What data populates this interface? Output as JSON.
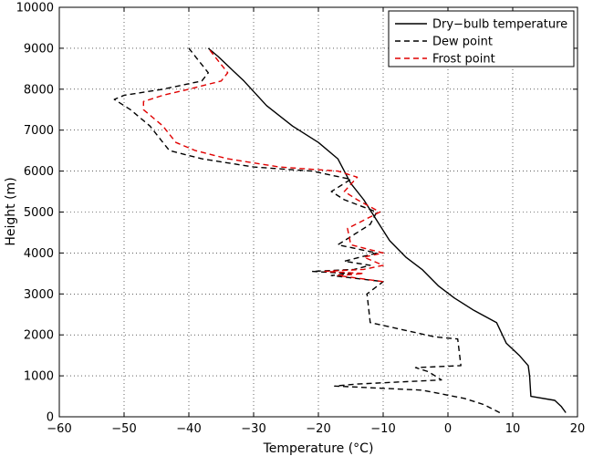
{
  "chart_data": {
    "type": "line",
    "title": "",
    "xlabel": "Temperature (°C)",
    "ylabel": "Height (m)",
    "xlim": [
      -60,
      20
    ],
    "ylim": [
      0,
      10000
    ],
    "xticks": [
      -60,
      -50,
      -40,
      -30,
      -20,
      -10,
      0,
      10,
      20
    ],
    "yticks": [
      0,
      1000,
      2000,
      3000,
      4000,
      5000,
      6000,
      7000,
      8000,
      9000,
      10000
    ],
    "grid": true,
    "legend_position": "top-right",
    "series": [
      {
        "name": "Dry−bulb temperature",
        "color": "#000000",
        "dash": "solid",
        "points": [
          [
            18.2,
            100
          ],
          [
            17.5,
            250
          ],
          [
            16.5,
            400
          ],
          [
            12.8,
            500
          ],
          [
            12.6,
            1000
          ],
          [
            12.4,
            1250
          ],
          [
            11.0,
            1500
          ],
          [
            9.0,
            1800
          ],
          [
            7.5,
            2300
          ],
          [
            4.0,
            2600
          ],
          [
            1.0,
            2900
          ],
          [
            -1.5,
            3200
          ],
          [
            -4.0,
            3600
          ],
          [
            -6.5,
            3900
          ],
          [
            -9.0,
            4300
          ],
          [
            -11.0,
            4800
          ],
          [
            -13.0,
            5300
          ],
          [
            -15.0,
            5700
          ],
          [
            -17.0,
            6300
          ],
          [
            -20.0,
            6700
          ],
          [
            -24.0,
            7100
          ],
          [
            -28.0,
            7600
          ],
          [
            -31.5,
            8200
          ],
          [
            -33.5,
            8500
          ],
          [
            -35.5,
            8800
          ],
          [
            -37.0,
            9000
          ]
        ]
      },
      {
        "name": "Dew point",
        "color": "#000000",
        "dash": "dashed",
        "points": [
          [
            8.0,
            100
          ],
          [
            5.5,
            300
          ],
          [
            2.5,
            450
          ],
          [
            -4.0,
            650
          ],
          [
            -17.5,
            750
          ],
          [
            -14.0,
            800
          ],
          [
            -1.0,
            900
          ],
          [
            -3.0,
            1100
          ],
          [
            -5.0,
            1200
          ],
          [
            2.0,
            1250
          ],
          [
            1.5,
            1900
          ],
          [
            -2.0,
            1950
          ],
          [
            -12.0,
            2300
          ],
          [
            -12.5,
            3000
          ],
          [
            -10.0,
            3300
          ],
          [
            -18.0,
            3450
          ],
          [
            -15.0,
            3500
          ],
          [
            -21.0,
            3550
          ],
          [
            -14.5,
            3600
          ],
          [
            -12.0,
            3700
          ],
          [
            -16.0,
            3800
          ],
          [
            -11.0,
            4000
          ],
          [
            -17.0,
            4200
          ],
          [
            -12.0,
            4700
          ],
          [
            -11.0,
            5000
          ],
          [
            -16.0,
            5300
          ],
          [
            -18.0,
            5500
          ],
          [
            -15.0,
            5800
          ],
          [
            -21.0,
            6000
          ],
          [
            -30.0,
            6100
          ],
          [
            -38.0,
            6300
          ],
          [
            -43.0,
            6500
          ],
          [
            -44.0,
            6700
          ],
          [
            -46.0,
            7100
          ],
          [
            -49.0,
            7500
          ],
          [
            -51.5,
            7750
          ],
          [
            -50.0,
            7850
          ],
          [
            -44.0,
            8000
          ],
          [
            -38.0,
            8200
          ],
          [
            -37.0,
            8400
          ],
          [
            -39.0,
            8800
          ],
          [
            -40.0,
            9000
          ]
        ]
      },
      {
        "name": "Frost point",
        "color": "#e00000",
        "dash": "dashed",
        "points": [
          [
            -10.0,
            3300
          ],
          [
            -17.0,
            3450
          ],
          [
            -13.0,
            3500
          ],
          [
            -19.0,
            3550
          ],
          [
            -13.0,
            3600
          ],
          [
            -10.0,
            3700
          ],
          [
            -13.0,
            3900
          ],
          [
            -10.0,
            4000
          ],
          [
            -15.0,
            4200
          ],
          [
            -15.5,
            4600
          ],
          [
            -13.0,
            4800
          ],
          [
            -10.5,
            5000
          ],
          [
            -14.0,
            5300
          ],
          [
            -16.0,
            5500
          ],
          [
            -14.0,
            5850
          ],
          [
            -17.0,
            6000
          ],
          [
            -26.0,
            6100
          ],
          [
            -34.0,
            6300
          ],
          [
            -39.0,
            6500
          ],
          [
            -42.0,
            6700
          ],
          [
            -44.0,
            7100
          ],
          [
            -47.0,
            7500
          ],
          [
            -47.0,
            7700
          ],
          [
            -44.0,
            7850
          ],
          [
            -40.0,
            8000
          ],
          [
            -35.0,
            8200
          ],
          [
            -34.0,
            8400
          ],
          [
            -36.0,
            8800
          ],
          [
            -37.0,
            9000
          ]
        ]
      }
    ]
  }
}
